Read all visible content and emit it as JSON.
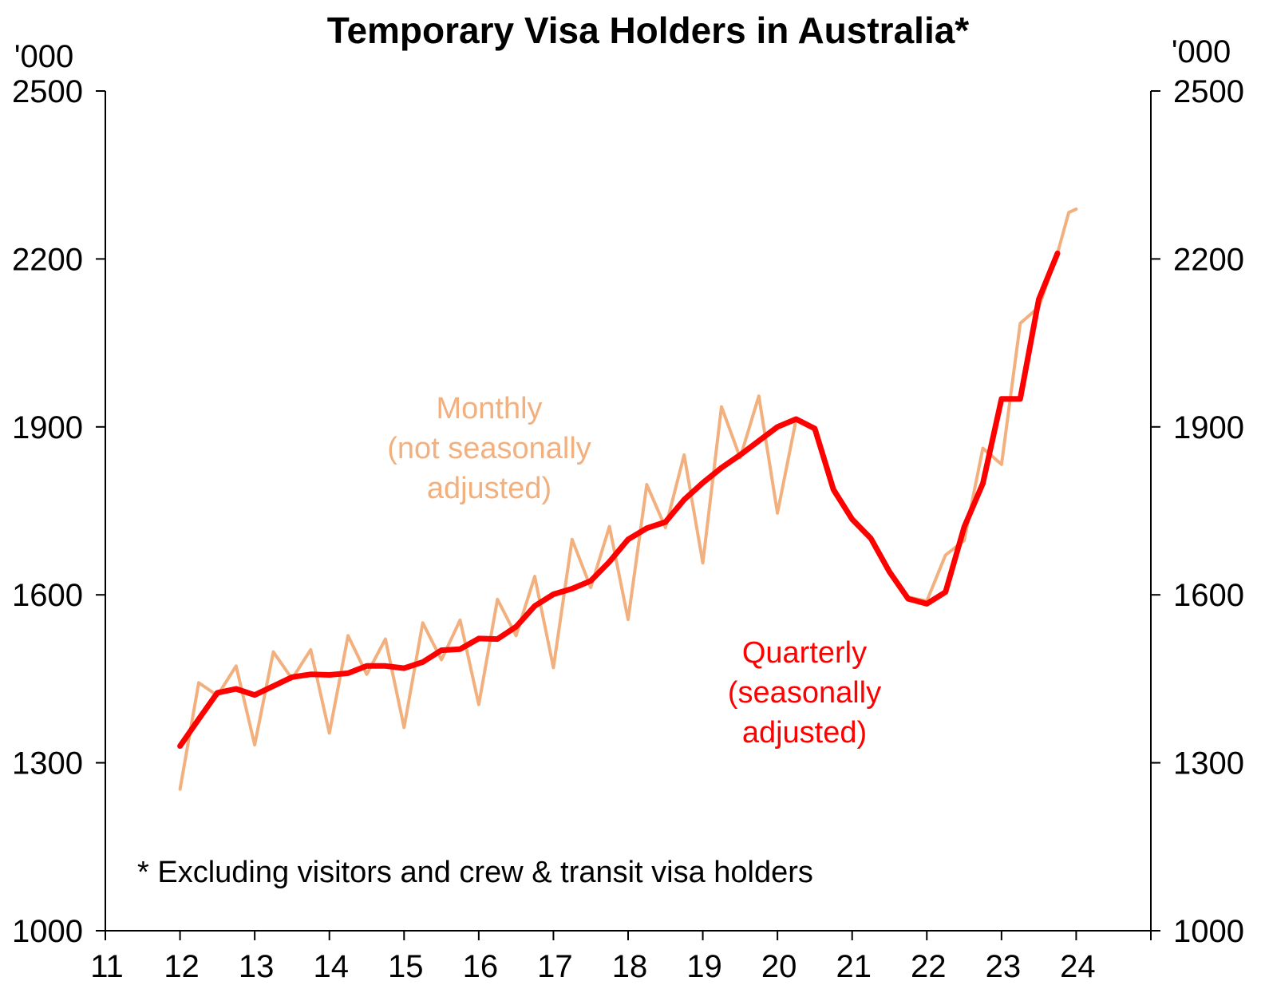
{
  "chart_data": {
    "type": "line",
    "title": "Temporary Visa Holders in Australia*",
    "y_unit_left": "'000",
    "y_unit_right": "'000",
    "ylim": [
      1000,
      2500
    ],
    "y_ticks": [
      1000,
      1300,
      1600,
      1900,
      2200,
      2500
    ],
    "y_tick_labels": [
      "1000",
      "1300",
      "1600",
      "1900",
      "2200",
      "2500"
    ],
    "xlim": [
      2011,
      2025
    ],
    "x_tick_labels": [
      {
        "x": 2011,
        "label": "11"
      },
      {
        "x": 2012,
        "label": "12"
      },
      {
        "x": 2013,
        "label": "13"
      },
      {
        "x": 2014,
        "label": "14"
      },
      {
        "x": 2015,
        "label": "15"
      },
      {
        "x": 2016,
        "label": "16"
      },
      {
        "x": 2017,
        "label": "17"
      },
      {
        "x": 2018,
        "label": "18"
      },
      {
        "x": 2019,
        "label": "19"
      },
      {
        "x": 2020,
        "label": "20"
      },
      {
        "x": 2021,
        "label": "21"
      },
      {
        "x": 2022,
        "label": "22"
      },
      {
        "x": 2023,
        "label": "23"
      },
      {
        "x": 2024,
        "label": "24"
      }
    ],
    "footnote": "* Excluding visitors and crew & transit visa holders",
    "series": [
      {
        "key": "monthly",
        "label_lines": [
          "Monthly",
          "(not seasonally",
          "adjusted)"
        ],
        "color": "#f2b07e",
        "stroke": 4,
        "points": [
          [
            2012.0,
            1253
          ],
          [
            2012.25,
            1443
          ],
          [
            2012.5,
            1420
          ],
          [
            2012.75,
            1473
          ],
          [
            2013.0,
            1332
          ],
          [
            2013.25,
            1498
          ],
          [
            2013.5,
            1450
          ],
          [
            2013.75,
            1502
          ],
          [
            2014.0,
            1353
          ],
          [
            2014.25,
            1527
          ],
          [
            2014.5,
            1458
          ],
          [
            2014.75,
            1521
          ],
          [
            2015.0,
            1363
          ],
          [
            2015.25,
            1550
          ],
          [
            2015.5,
            1484
          ],
          [
            2015.75,
            1555
          ],
          [
            2016.0,
            1404
          ],
          [
            2016.25,
            1592
          ],
          [
            2016.5,
            1527
          ],
          [
            2016.75,
            1633
          ],
          [
            2017.0,
            1470
          ],
          [
            2017.25,
            1699
          ],
          [
            2017.5,
            1613
          ],
          [
            2017.75,
            1722
          ],
          [
            2018.0,
            1556
          ],
          [
            2018.25,
            1797
          ],
          [
            2018.5,
            1720
          ],
          [
            2018.75,
            1850
          ],
          [
            2019.0,
            1657
          ],
          [
            2019.25,
            1936
          ],
          [
            2019.5,
            1845
          ],
          [
            2019.75,
            1955
          ],
          [
            2020.0,
            1746
          ],
          [
            2020.25,
            1913
          ],
          [
            2020.5,
            1896
          ],
          [
            2020.75,
            1783
          ],
          [
            2021.0,
            1735
          ],
          [
            2021.25,
            1700
          ],
          [
            2021.5,
            1639
          ],
          [
            2021.75,
            1596
          ],
          [
            2022.0,
            1589
          ],
          [
            2022.25,
            1671
          ],
          [
            2022.5,
            1697
          ],
          [
            2022.75,
            1862
          ],
          [
            2023.0,
            1833
          ],
          [
            2023.25,
            2085
          ],
          [
            2023.5,
            2114
          ],
          [
            2023.75,
            2210
          ],
          [
            2023.9,
            2283
          ],
          [
            2024.0,
            2289
          ]
        ]
      },
      {
        "key": "quarterly",
        "label_lines": [
          "Quarterly",
          "(seasonally",
          "adjusted)"
        ],
        "color": "#ff0000",
        "stroke": 7,
        "points": [
          [
            2012.0,
            1330
          ],
          [
            2012.25,
            1378
          ],
          [
            2012.5,
            1425
          ],
          [
            2012.75,
            1432
          ],
          [
            2013.0,
            1421
          ],
          [
            2013.25,
            1437
          ],
          [
            2013.5,
            1453
          ],
          [
            2013.75,
            1458
          ],
          [
            2014.0,
            1457
          ],
          [
            2014.25,
            1460
          ],
          [
            2014.5,
            1473
          ],
          [
            2014.75,
            1473
          ],
          [
            2015.0,
            1469
          ],
          [
            2015.25,
            1480
          ],
          [
            2015.5,
            1501
          ],
          [
            2015.75,
            1503
          ],
          [
            2016.0,
            1522
          ],
          [
            2016.25,
            1521
          ],
          [
            2016.5,
            1543
          ],
          [
            2016.75,
            1580
          ],
          [
            2017.0,
            1601
          ],
          [
            2017.25,
            1611
          ],
          [
            2017.5,
            1625
          ],
          [
            2017.75,
            1659
          ],
          [
            2018.0,
            1699
          ],
          [
            2018.25,
            1719
          ],
          [
            2018.5,
            1730
          ],
          [
            2018.75,
            1770
          ],
          [
            2019.0,
            1800
          ],
          [
            2019.25,
            1827
          ],
          [
            2019.5,
            1850
          ],
          [
            2019.75,
            1875
          ],
          [
            2020.0,
            1900
          ],
          [
            2020.25,
            1914
          ],
          [
            2020.5,
            1897
          ],
          [
            2020.75,
            1788
          ],
          [
            2021.0,
            1735
          ],
          [
            2021.25,
            1701
          ],
          [
            2021.5,
            1641
          ],
          [
            2021.75,
            1593
          ],
          [
            2022.0,
            1584
          ],
          [
            2022.25,
            1605
          ],
          [
            2022.5,
            1721
          ],
          [
            2022.75,
            1799
          ],
          [
            2023.0,
            1950
          ],
          [
            2023.25,
            1950
          ],
          [
            2023.5,
            2128
          ],
          [
            2023.75,
            2210
          ]
        ]
      }
    ]
  }
}
